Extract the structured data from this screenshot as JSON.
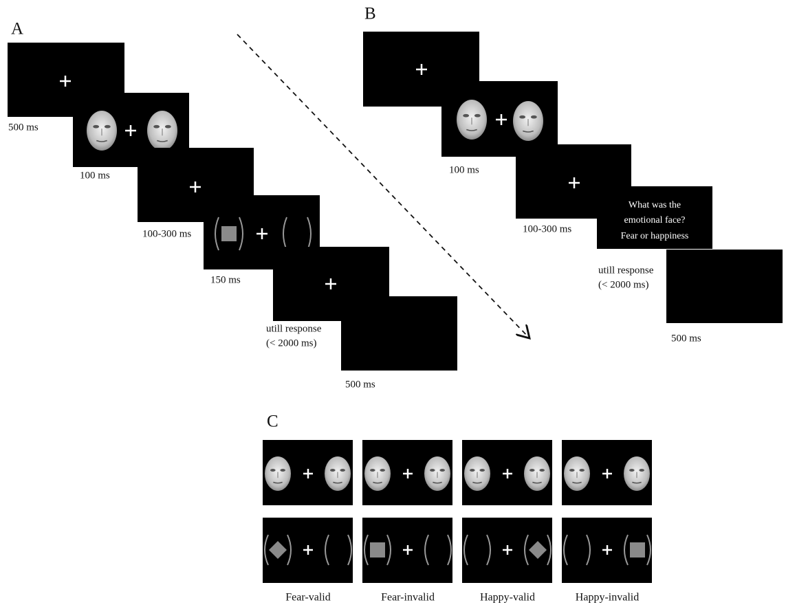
{
  "panel_a": {
    "label": "A",
    "durations": [
      "500 ms",
      "100 ms",
      "100-300 ms",
      "150 ms",
      "500 ms"
    ],
    "response": [
      "utill response",
      "(< 2000 ms)"
    ]
  },
  "panel_b": {
    "label": "B",
    "durations": [
      "100 ms",
      "100-300 ms",
      "500 ms"
    ],
    "question": [
      "What was the",
      "emotional face?",
      "Fear or happiness"
    ],
    "response": [
      "utill response",
      "(< 2000 ms)"
    ]
  },
  "panel_c": {
    "label": "C",
    "conditions": [
      "Fear-valid",
      "Fear-invalid",
      "Happy-valid",
      "Happy-invalid"
    ]
  }
}
